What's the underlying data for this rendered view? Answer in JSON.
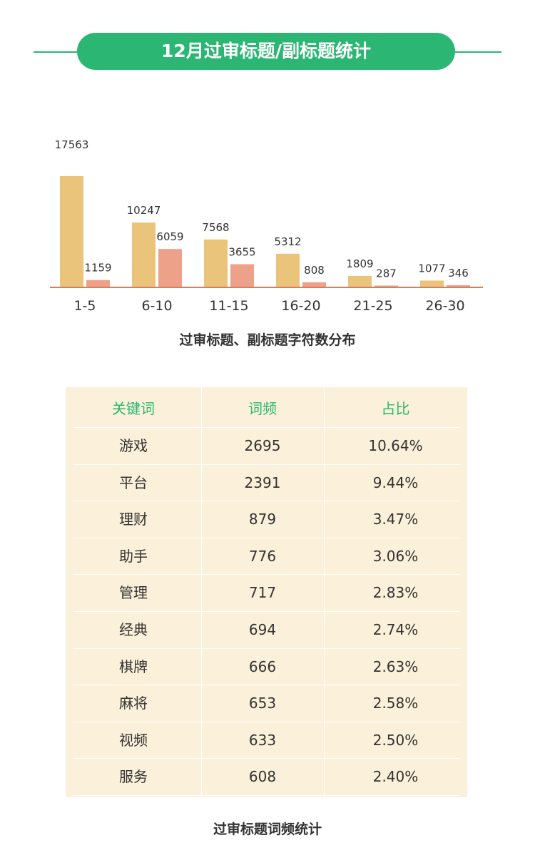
{
  "header": {
    "title": "12月过审标题/副标题统计"
  },
  "chart_data": {
    "type": "bar",
    "categories": [
      "1-5",
      "6-10",
      "11-15",
      "16-20",
      "21-25",
      "26-30"
    ],
    "series": [
      {
        "values": [
          17563,
          10247,
          7568,
          5312,
          1809,
          1077
        ],
        "color": "#e9c47a"
      },
      {
        "values": [
          1159,
          6059,
          3655,
          808,
          287,
          346
        ],
        "color": "#eea189"
      }
    ],
    "axis_color": "#e07b5a",
    "title": "",
    "xlabel": "",
    "ylabel": ""
  },
  "chart_caption": "过审标题、副标题字符数分布",
  "table": {
    "headers": [
      "关键词",
      "词频",
      "占比"
    ],
    "rows": [
      [
        "游戏",
        "2695",
        "10.64%"
      ],
      [
        "平台",
        "2391",
        "9.44%"
      ],
      [
        "理财",
        "879",
        "3.47%"
      ],
      [
        "助手",
        "776",
        "3.06%"
      ],
      [
        "管理",
        "717",
        "2.83%"
      ],
      [
        "经典",
        "694",
        "2.74%"
      ],
      [
        "棋牌",
        "666",
        "2.63%"
      ],
      [
        "麻将",
        "653",
        "2.58%"
      ],
      [
        "视频",
        "633",
        "2.50%"
      ],
      [
        "服务",
        "608",
        "2.40%"
      ]
    ]
  },
  "table_caption": "过审标题词频统计"
}
